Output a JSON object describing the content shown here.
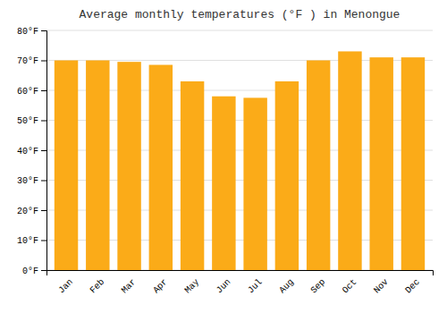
{
  "chart_data": {
    "type": "bar",
    "title": "Average monthly temperatures (°F ) in Menongue",
    "categories": [
      "Jan",
      "Feb",
      "Mar",
      "Apr",
      "May",
      "Jun",
      "Jul",
      "Aug",
      "Sep",
      "Oct",
      "Nov",
      "Dec"
    ],
    "values": [
      70,
      70,
      69.5,
      68.5,
      63,
      58,
      57.5,
      63,
      70,
      73,
      71,
      71
    ],
    "color": "#FBAB18",
    "ylim": [
      0,
      80
    ],
    "yticks": [
      {
        "value": 0,
        "label": "0°F"
      },
      {
        "value": 10,
        "label": "10°F"
      },
      {
        "value": 20,
        "label": "20°F"
      },
      {
        "value": 30,
        "label": "30°F"
      },
      {
        "value": 40,
        "label": "40°F"
      },
      {
        "value": 50,
        "label": "50°F"
      },
      {
        "value": 60,
        "label": "60°F"
      },
      {
        "value": 70,
        "label": "70°F"
      },
      {
        "value": 80,
        "label": "80°F"
      }
    ],
    "grid": true
  }
}
